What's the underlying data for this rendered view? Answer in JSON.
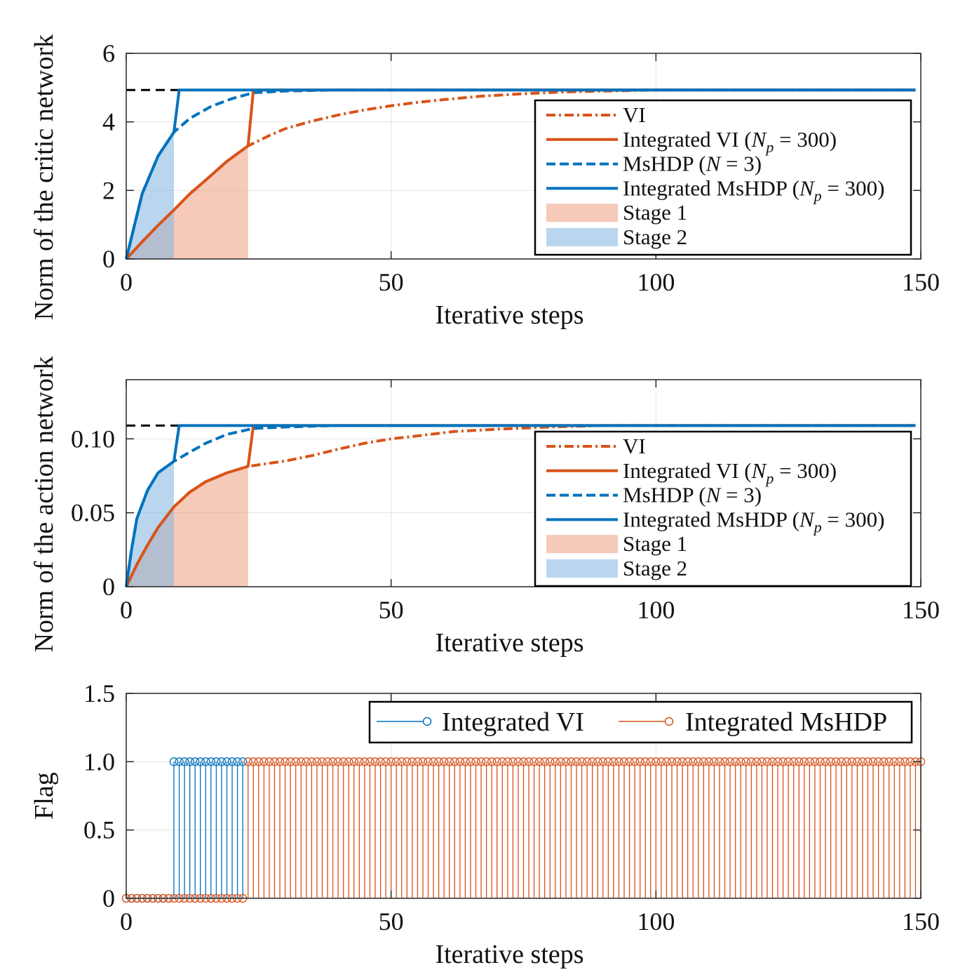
{
  "colors": {
    "blue": "#0072BD",
    "orange": "#D95319",
    "stage1": "#EE9E7E",
    "stage2": "#7FB5E0",
    "ref": "#000000"
  },
  "chart_data": [
    {
      "type": "line",
      "xlabel": "Iterative steps",
      "ylabel": "Norm of the critic network",
      "xlim": [
        0,
        150
      ],
      "ylim": [
        0,
        6
      ],
      "xticks": [
        "0",
        "50",
        "100",
        "150"
      ],
      "xtick_values": [
        0,
        50,
        100,
        150
      ],
      "yticks": [
        "0",
        "2",
        "4",
        "6"
      ],
      "ytick_values": [
        0,
        2,
        4,
        6
      ],
      "grid": true,
      "legend_position": "right",
      "reference_line": {
        "y": 4.93,
        "style": "dashed",
        "color": "#000000"
      },
      "series": [
        {
          "name": "VI",
          "color": "orange",
          "style": "dashdot",
          "points": [
            [
              0,
              0
            ],
            [
              3,
              0.5
            ],
            [
              6,
              0.98
            ],
            [
              9,
              1.43
            ],
            [
              12,
              1.9
            ],
            [
              15,
              2.3
            ],
            [
              19,
              2.85
            ],
            [
              23,
              3.3
            ],
            [
              27,
              3.6
            ],
            [
              30,
              3.8
            ],
            [
              35,
              4.02
            ],
            [
              40,
              4.2
            ],
            [
              45,
              4.35
            ],
            [
              50,
              4.47
            ],
            [
              55,
              4.57
            ],
            [
              60,
              4.65
            ],
            [
              67,
              4.75
            ],
            [
              75,
              4.82
            ],
            [
              82,
              4.87
            ],
            [
              90,
              4.9
            ],
            [
              100,
              4.93
            ],
            [
              149,
              4.93
            ]
          ]
        },
        {
          "name": "Integrated VI",
          "color": "orange",
          "style": "solid",
          "points": [
            [
              0,
              0
            ],
            [
              3,
              0.5
            ],
            [
              6,
              0.98
            ],
            [
              9,
              1.43
            ],
            [
              12,
              1.9
            ],
            [
              15,
              2.3
            ],
            [
              19,
              2.85
            ],
            [
              23,
              3.3
            ],
            [
              24,
              4.93
            ],
            [
              149,
              4.93
            ]
          ]
        },
        {
          "name": "MsHDP",
          "color": "blue",
          "style": "dashed",
          "points": [
            [
              0,
              0
            ],
            [
              3,
              1.9
            ],
            [
              6,
              3.0
            ],
            [
              9,
              3.7
            ],
            [
              12,
              4.1
            ],
            [
              16,
              4.45
            ],
            [
              20,
              4.68
            ],
            [
              24,
              4.85
            ],
            [
              30,
              4.9
            ],
            [
              40,
              4.93
            ],
            [
              149,
              4.93
            ]
          ]
        },
        {
          "name": "Integrated MsHDP",
          "color": "blue",
          "style": "solid",
          "points": [
            [
              0,
              0
            ],
            [
              3,
              1.9
            ],
            [
              6,
              3.0
            ],
            [
              9,
              3.7
            ],
            [
              10,
              4.93
            ],
            [
              149,
              4.93
            ]
          ]
        }
      ],
      "stages": [
        {
          "name": "Stage 1",
          "color": "stage1",
          "under": 0,
          "x_range": [
            0,
            23
          ]
        },
        {
          "name": "Stage 2",
          "color": "stage2",
          "under": 2,
          "x_range": [
            0,
            9
          ]
        }
      ],
      "legend": [
        {
          "kind": "line",
          "color": "orange",
          "style": "dashdot",
          "parts": [
            {
              "t": "VI"
            }
          ]
        },
        {
          "kind": "line",
          "color": "orange",
          "style": "solid",
          "parts": [
            {
              "t": "Integrated VI ("
            },
            {
              "t": "N",
              "i": true
            },
            {
              "t": "p",
              "i": true,
              "sub": true
            },
            {
              "t": " = 300)"
            }
          ]
        },
        {
          "kind": "line",
          "color": "blue",
          "style": "dashed",
          "parts": [
            {
              "t": "MsHDP ("
            },
            {
              "t": "N",
              "i": true
            },
            {
              "t": " = 3)"
            }
          ]
        },
        {
          "kind": "line",
          "color": "blue",
          "style": "solid",
          "parts": [
            {
              "t": "Integrated MsHDP ("
            },
            {
              "t": "N",
              "i": true
            },
            {
              "t": "p",
              "i": true,
              "sub": true
            },
            {
              "t": " = 300)"
            }
          ]
        },
        {
          "kind": "patch",
          "color": "stage1",
          "parts": [
            {
              "t": "Stage 1"
            }
          ]
        },
        {
          "kind": "patch",
          "color": "stage2",
          "parts": [
            {
              "t": "Stage 2"
            }
          ]
        }
      ]
    },
    {
      "type": "line",
      "xlabel": "Iterative steps",
      "ylabel": "Norm of the action network",
      "xlim": [
        0,
        150
      ],
      "ylim": [
        0,
        0.14
      ],
      "xticks": [
        "0",
        "50",
        "100",
        "150"
      ],
      "xtick_values": [
        0,
        50,
        100,
        150
      ],
      "yticks": [
        "0",
        "0.05",
        "0.10"
      ],
      "ytick_values": [
        0,
        0.05,
        0.1
      ],
      "grid": true,
      "legend_position": "right",
      "reference_line": {
        "y": 0.109,
        "style": "dashed",
        "color": "#000000"
      },
      "series": [
        {
          "name": "VI",
          "color": "orange",
          "style": "dashdot",
          "points": [
            [
              0,
              0
            ],
            [
              2,
              0.015
            ],
            [
              4,
              0.028
            ],
            [
              6,
              0.04
            ],
            [
              9,
              0.054
            ],
            [
              12,
              0.064
            ],
            [
              15,
              0.071
            ],
            [
              19,
              0.077
            ],
            [
              23,
              0.0814
            ],
            [
              30,
              0.085
            ],
            [
              35,
              0.0886
            ],
            [
              40,
              0.093
            ],
            [
              45,
              0.097
            ],
            [
              50,
              0.1
            ],
            [
              55,
              0.102
            ],
            [
              62,
              0.105
            ],
            [
              70,
              0.1065
            ],
            [
              80,
              0.108
            ],
            [
              90,
              0.109
            ],
            [
              149,
              0.109
            ]
          ]
        },
        {
          "name": "Integrated VI",
          "color": "orange",
          "style": "solid",
          "points": [
            [
              0,
              0
            ],
            [
              2,
              0.015
            ],
            [
              4,
              0.028
            ],
            [
              6,
              0.04
            ],
            [
              9,
              0.054
            ],
            [
              12,
              0.064
            ],
            [
              15,
              0.071
            ],
            [
              19,
              0.077
            ],
            [
              23,
              0.0814
            ],
            [
              24,
              0.109
            ],
            [
              149,
              0.109
            ]
          ]
        },
        {
          "name": "MsHDP",
          "color": "blue",
          "style": "dashed",
          "points": [
            [
              0,
              0
            ],
            [
              1,
              0.025
            ],
            [
              2,
              0.046
            ],
            [
              4,
              0.065
            ],
            [
              6,
              0.077
            ],
            [
              9,
              0.0848
            ],
            [
              12,
              0.091
            ],
            [
              15,
              0.097
            ],
            [
              19,
              0.103
            ],
            [
              24,
              0.107
            ],
            [
              30,
              0.108
            ],
            [
              40,
              0.109
            ],
            [
              149,
              0.109
            ]
          ]
        },
        {
          "name": "Integrated MsHDP",
          "color": "blue",
          "style": "solid",
          "points": [
            [
              0,
              0
            ],
            [
              1,
              0.025
            ],
            [
              2,
              0.046
            ],
            [
              4,
              0.065
            ],
            [
              6,
              0.077
            ],
            [
              9,
              0.0848
            ],
            [
              10,
              0.109
            ],
            [
              149,
              0.109
            ]
          ]
        }
      ],
      "stages": [
        {
          "name": "Stage 1",
          "color": "stage1",
          "under": 0,
          "x_range": [
            0,
            23
          ]
        },
        {
          "name": "Stage 2",
          "color": "stage2",
          "under": 2,
          "x_range": [
            0,
            9
          ]
        }
      ],
      "legend": [
        {
          "kind": "line",
          "color": "orange",
          "style": "dashdot",
          "parts": [
            {
              "t": "VI"
            }
          ]
        },
        {
          "kind": "line",
          "color": "orange",
          "style": "solid",
          "parts": [
            {
              "t": "Integrated VI ("
            },
            {
              "t": "N",
              "i": true
            },
            {
              "t": "p",
              "i": true,
              "sub": true
            },
            {
              "t": " = 300)"
            }
          ]
        },
        {
          "kind": "line",
          "color": "blue",
          "style": "dashed",
          "parts": [
            {
              "t": "MsHDP ("
            },
            {
              "t": "N",
              "i": true
            },
            {
              "t": " = 3)"
            }
          ]
        },
        {
          "kind": "line",
          "color": "blue",
          "style": "solid",
          "parts": [
            {
              "t": "Integrated MsHDP ("
            },
            {
              "t": "N",
              "i": true
            },
            {
              "t": "p",
              "i": true,
              "sub": true
            },
            {
              "t": " = 300)"
            }
          ]
        },
        {
          "kind": "patch",
          "color": "stage1",
          "parts": [
            {
              "t": "Stage 1"
            }
          ]
        },
        {
          "kind": "patch",
          "color": "stage2",
          "parts": [
            {
              "t": "Stage 2"
            }
          ]
        }
      ]
    },
    {
      "type": "stem",
      "xlabel": "Iterative steps",
      "ylabel": "Flag",
      "xlim": [
        0,
        150
      ],
      "ylim": [
        0,
        1.5
      ],
      "xticks": [
        "0",
        "50",
        "100",
        "150"
      ],
      "xtick_values": [
        0,
        50,
        100,
        150
      ],
      "yticks": [
        "0",
        "0.5",
        "1.0",
        "1.5"
      ],
      "ytick_values": [
        0,
        0.5,
        1.0,
        1.5
      ],
      "grid": true,
      "legend_position": "top-right",
      "series": [
        {
          "name": "Integrated VI",
          "color": "blue",
          "x_range": [
            0,
            22
          ],
          "step_on_at": 9
        },
        {
          "name": "Integrated MsHDP",
          "color": "orange",
          "x_range": [
            0,
            150
          ],
          "step_on_at": 23
        }
      ]
    }
  ]
}
